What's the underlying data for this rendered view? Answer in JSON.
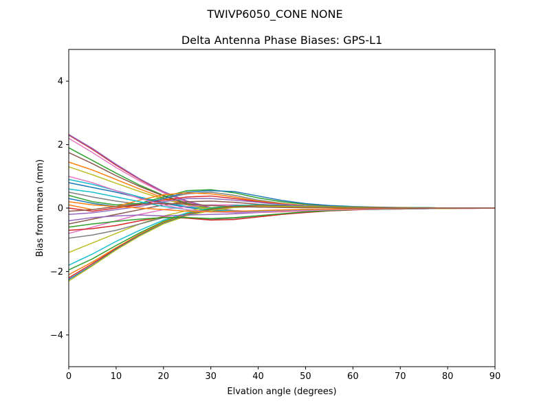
{
  "chart_data": {
    "type": "line",
    "suptitle": "TWIVP6050_CONE  NONE",
    "title": "Delta Antenna Phase Biases: GPS-L1",
    "xlabel": "Elvation angle (degrees)",
    "ylabel": "Bias from mean (mm)",
    "xlim": [
      0,
      90
    ],
    "ylim": [
      -5,
      5
    ],
    "xticks": [
      0,
      10,
      20,
      30,
      40,
      50,
      60,
      70,
      80,
      90
    ],
    "yticks": [
      -4,
      -2,
      0,
      2,
      4
    ],
    "ytick_labels": [
      "−4",
      "−2",
      "0",
      "2",
      "4"
    ],
    "grid": false,
    "x": [
      0,
      5,
      10,
      15,
      20,
      25,
      30,
      35,
      40,
      45,
      50,
      55,
      60,
      65,
      70,
      75,
      80,
      85,
      90
    ],
    "series": [
      {
        "color": "#d62728",
        "values": [
          2.3,
          1.85,
          1.35,
          0.9,
          0.5,
          0.2,
          0.0,
          -0.1,
          -0.12,
          -0.1,
          -0.08,
          -0.07,
          -0.05,
          -0.04,
          -0.03,
          -0.02,
          -0.01,
          -0.01,
          0.0
        ]
      },
      {
        "color": "#9467bd",
        "values": [
          2.32,
          1.88,
          1.38,
          0.92,
          0.52,
          0.22,
          0.02,
          -0.08,
          -0.11,
          -0.1,
          -0.08,
          -0.06,
          -0.05,
          -0.04,
          -0.03,
          -0.02,
          -0.01,
          0.0,
          0.0
        ]
      },
      {
        "color": "#e377c2",
        "values": [
          2.2,
          1.75,
          1.28,
          0.85,
          0.48,
          0.18,
          -0.02,
          -0.12,
          -0.14,
          -0.12,
          -0.09,
          -0.07,
          -0.05,
          -0.04,
          -0.03,
          -0.02,
          -0.01,
          0.0,
          0.0
        ]
      },
      {
        "color": "#2ca02c",
        "values": [
          1.9,
          1.5,
          1.1,
          0.72,
          0.4,
          0.15,
          -0.02,
          -0.1,
          -0.12,
          -0.1,
          -0.08,
          -0.06,
          -0.05,
          -0.04,
          -0.03,
          -0.02,
          -0.01,
          0.0,
          0.0
        ]
      },
      {
        "color": "#8c564b",
        "values": [
          1.75,
          1.4,
          1.02,
          0.68,
          0.38,
          0.12,
          -0.03,
          -0.1,
          -0.12,
          -0.1,
          -0.08,
          -0.06,
          -0.04,
          -0.03,
          -0.02,
          -0.02,
          -0.01,
          0.0,
          0.0
        ]
      },
      {
        "color": "#ff7f0e",
        "values": [
          1.45,
          1.2,
          0.9,
          0.6,
          0.32,
          0.1,
          -0.05,
          -0.12,
          -0.13,
          -0.11,
          -0.08,
          -0.06,
          -0.04,
          -0.03,
          -0.02,
          -0.01,
          -0.01,
          0.0,
          0.0
        ]
      },
      {
        "color": "#bcbd22",
        "values": [
          1.3,
          1.05,
          0.78,
          0.52,
          0.28,
          0.1,
          -0.03,
          -0.1,
          -0.12,
          -0.1,
          -0.07,
          -0.05,
          -0.04,
          -0.03,
          -0.02,
          -0.01,
          -0.01,
          0.0,
          0.0
        ]
      },
      {
        "color": "#17becf",
        "values": [
          0.9,
          0.75,
          0.55,
          0.35,
          0.18,
          0.05,
          -0.05,
          -0.1,
          -0.1,
          -0.08,
          -0.06,
          -0.05,
          -0.04,
          -0.03,
          -0.02,
          -0.01,
          0.0,
          0.0,
          0.0
        ]
      },
      {
        "color": "#1f77b4",
        "values": [
          0.8,
          0.65,
          0.5,
          0.32,
          0.15,
          0.02,
          -0.08,
          -0.12,
          -0.11,
          -0.09,
          -0.07,
          -0.05,
          -0.04,
          -0.03,
          -0.02,
          -0.01,
          0.0,
          0.0,
          0.0
        ]
      },
      {
        "color": "#7f7f7f",
        "values": [
          0.5,
          0.35,
          0.22,
          0.12,
          0.3,
          0.45,
          0.5,
          0.4,
          0.25,
          0.15,
          0.08,
          0.05,
          0.03,
          0.02,
          0.01,
          0.01,
          0.0,
          0.0,
          0.0
        ]
      },
      {
        "color": "#2ca02c",
        "values": [
          0.4,
          0.2,
          0.1,
          0.15,
          0.35,
          0.55,
          0.58,
          0.48,
          0.32,
          0.2,
          0.12,
          0.07,
          0.04,
          0.02,
          0.01,
          0.01,
          0.0,
          0.0,
          0.0
        ]
      },
      {
        "color": "#1f77b4",
        "values": [
          0.3,
          0.15,
          0.05,
          0.1,
          0.3,
          0.5,
          0.55,
          0.52,
          0.38,
          0.24,
          0.14,
          0.08,
          0.05,
          0.03,
          0.02,
          0.01,
          0.0,
          0.0,
          0.0
        ]
      },
      {
        "color": "#ff7f0e",
        "values": [
          0.1,
          -0.05,
          0.05,
          0.25,
          0.42,
          0.48,
          0.45,
          0.35,
          0.22,
          0.14,
          0.08,
          0.05,
          0.03,
          0.02,
          0.01,
          0.0,
          0.0,
          0.0,
          0.0
        ]
      },
      {
        "color": "#d62728",
        "values": [
          0.0,
          -0.1,
          0.0,
          0.1,
          0.25,
          0.35,
          0.38,
          0.3,
          0.2,
          0.12,
          0.07,
          0.04,
          0.03,
          0.02,
          0.01,
          0.0,
          0.0,
          0.0,
          0.0
        ]
      },
      {
        "color": "#9467bd",
        "values": [
          -0.2,
          -0.15,
          -0.05,
          0.05,
          0.2,
          0.3,
          0.3,
          0.25,
          0.18,
          0.11,
          0.07,
          0.04,
          0.02,
          0.01,
          0.01,
          0.0,
          0.0,
          0.0,
          0.0
        ]
      },
      {
        "color": "#8c564b",
        "values": [
          -0.5,
          -0.35,
          -0.2,
          -0.05,
          0.1,
          0.2,
          0.22,
          0.18,
          0.12,
          0.08,
          0.05,
          0.03,
          0.02,
          0.01,
          0.01,
          0.0,
          0.0,
          0.0,
          0.0
        ]
      },
      {
        "color": "#e377c2",
        "values": [
          -0.8,
          -0.6,
          -0.4,
          -0.2,
          -0.05,
          0.05,
          0.1,
          0.1,
          0.08,
          0.05,
          0.03,
          0.02,
          0.01,
          0.01,
          0.0,
          0.0,
          0.0,
          0.0,
          0.0
        ]
      },
      {
        "color": "#bcbd22",
        "values": [
          -1.4,
          -1.1,
          -0.8,
          -0.5,
          -0.25,
          -0.08,
          0.02,
          0.06,
          0.06,
          0.05,
          0.03,
          0.02,
          0.01,
          0.01,
          0.0,
          0.0,
          0.0,
          0.0,
          0.0
        ]
      },
      {
        "color": "#17becf",
        "values": [
          -1.8,
          -1.45,
          -1.05,
          -0.7,
          -0.38,
          -0.15,
          0.0,
          0.08,
          0.1,
          0.08,
          0.06,
          0.04,
          0.03,
          0.02,
          0.01,
          0.01,
          0.0,
          0.0,
          0.0
        ]
      },
      {
        "color": "#2ca02c",
        "values": [
          -1.95,
          -1.6,
          -1.18,
          -0.78,
          -0.42,
          -0.18,
          -0.02,
          0.06,
          0.08,
          0.07,
          0.05,
          0.04,
          0.03,
          0.02,
          0.01,
          0.01,
          0.0,
          0.0,
          0.0
        ]
      },
      {
        "color": "#ff7f0e",
        "values": [
          -2.1,
          -1.7,
          -1.25,
          -0.82,
          -0.45,
          -0.2,
          -0.05,
          0.04,
          0.07,
          0.06,
          0.05,
          0.03,
          0.02,
          0.02,
          0.01,
          0.0,
          0.0,
          0.0,
          0.0
        ]
      },
      {
        "color": "#d62728",
        "values": [
          -2.2,
          -1.75,
          -1.28,
          -0.85,
          -0.48,
          -0.22,
          -0.06,
          0.03,
          0.06,
          0.06,
          0.05,
          0.03,
          0.02,
          0.02,
          0.01,
          0.0,
          0.0,
          0.0,
          0.0
        ]
      },
      {
        "color": "#1f77b4",
        "values": [
          -2.25,
          -1.8,
          -1.3,
          -0.86,
          -0.48,
          -0.22,
          -0.07,
          0.02,
          0.05,
          0.05,
          0.04,
          0.03,
          0.02,
          0.01,
          0.01,
          0.0,
          0.0,
          0.0,
          0.0
        ]
      },
      {
        "color": "#bcbd22",
        "values": [
          -2.3,
          -1.82,
          -1.32,
          -0.88,
          -0.5,
          -0.24,
          -0.08,
          0.02,
          0.05,
          0.05,
          0.04,
          0.03,
          0.02,
          0.01,
          0.01,
          0.0,
          0.0,
          0.0,
          0.0
        ]
      },
      {
        "color": "#7f7f7f",
        "values": [
          -0.95,
          -0.85,
          -0.7,
          -0.5,
          -0.3,
          -0.3,
          -0.35,
          -0.32,
          -0.25,
          -0.18,
          -0.12,
          -0.08,
          -0.05,
          -0.03,
          -0.02,
          -0.01,
          0.0,
          0.0,
          0.0
        ]
      },
      {
        "color": "#d62728",
        "values": [
          -0.7,
          -0.65,
          -0.55,
          -0.4,
          -0.28,
          -0.32,
          -0.38,
          -0.36,
          -0.28,
          -0.2,
          -0.14,
          -0.09,
          -0.06,
          -0.03,
          -0.02,
          -0.01,
          0.0,
          0.0,
          0.0
        ]
      },
      {
        "color": "#2ca02c",
        "values": [
          -0.6,
          -0.5,
          -0.42,
          -0.35,
          -0.3,
          -0.3,
          -0.33,
          -0.3,
          -0.24,
          -0.18,
          -0.12,
          -0.08,
          -0.05,
          -0.03,
          -0.02,
          -0.01,
          0.0,
          0.0,
          0.0
        ]
      },
      {
        "color": "#9467bd",
        "values": [
          -0.4,
          -0.3,
          -0.25,
          -0.22,
          -0.25,
          -0.22,
          -0.2,
          -0.18,
          -0.14,
          -0.1,
          -0.07,
          -0.05,
          -0.03,
          -0.02,
          -0.01,
          -0.01,
          0.0,
          0.0,
          0.0
        ]
      },
      {
        "color": "#17becf",
        "values": [
          0.6,
          0.5,
          0.35,
          0.2,
          0.05,
          -0.05,
          -0.12,
          -0.14,
          -0.12,
          -0.09,
          -0.07,
          -0.05,
          -0.04,
          -0.03,
          -0.02,
          -0.01,
          0.0,
          0.0,
          0.0
        ]
      },
      {
        "color": "#e377c2",
        "values": [
          1.0,
          0.8,
          0.55,
          0.3,
          0.1,
          -0.05,
          -0.12,
          -0.14,
          -0.13,
          -0.1,
          -0.08,
          -0.06,
          -0.04,
          -0.03,
          -0.02,
          -0.01,
          0.0,
          0.0,
          0.0
        ]
      },
      {
        "color": "#ff7f0e",
        "values": [
          0.2,
          0.1,
          0.05,
          0.0,
          -0.05,
          -0.1,
          -0.12,
          -0.1,
          -0.08,
          -0.06,
          -0.04,
          -0.03,
          -0.02,
          -0.01,
          -0.01,
          0.0,
          0.0,
          0.0,
          0.0
        ]
      },
      {
        "color": "#8c564b",
        "values": [
          -0.1,
          -0.05,
          0.05,
          0.12,
          0.15,
          0.12,
          0.08,
          0.05,
          0.03,
          0.02,
          0.01,
          0.01,
          0.0,
          0.0,
          0.0,
          0.0,
          0.0,
          0.0,
          0.0
        ]
      }
    ]
  }
}
